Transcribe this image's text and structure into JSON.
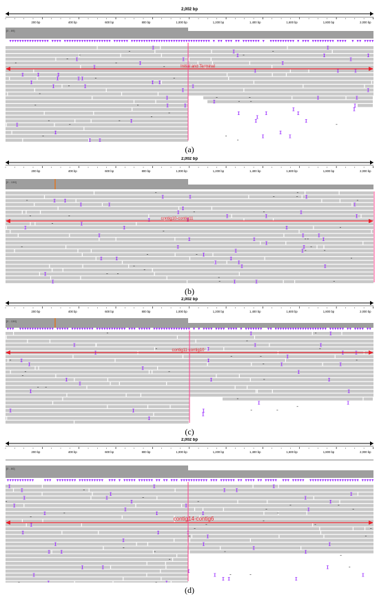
{
  "genome_length_label": "2,002 bp",
  "tick_labels": [
    "200 bp",
    "400 bp",
    "600 bp",
    "800 bp",
    "1,000 bp",
    "1,200 bp",
    "1,400 bp",
    "1,600 bp",
    "1,800 bp",
    "2,000 bp"
  ],
  "panels": [
    {
      "id": "a",
      "caption": "(a)",
      "coverage_label": "[0 - 69]",
      "junction_label": "Initial and Terminal",
      "tracks": "purple"
    },
    {
      "id": "b",
      "caption": "(b)",
      "coverage_label": "[0 - 139]",
      "junction_label": "contig10-contig11",
      "tracks": "none"
    },
    {
      "id": "c",
      "caption": "(c)",
      "coverage_label": "[0 - 139]",
      "junction_label": "contig11-contig10",
      "tracks": "purple"
    },
    {
      "id": "d",
      "caption": "(d)",
      "coverage_label": "[0 - 60]",
      "junction_label": "contig14-contig6",
      "tracks": "purple"
    }
  ],
  "colors": {
    "read": "#c8c8c8",
    "coverage": "#9e9e9e",
    "mismatch": "#9b30ff",
    "junction": "#e8202a",
    "junction_vertical": "#ff3c8c",
    "axis": "#000000"
  }
}
